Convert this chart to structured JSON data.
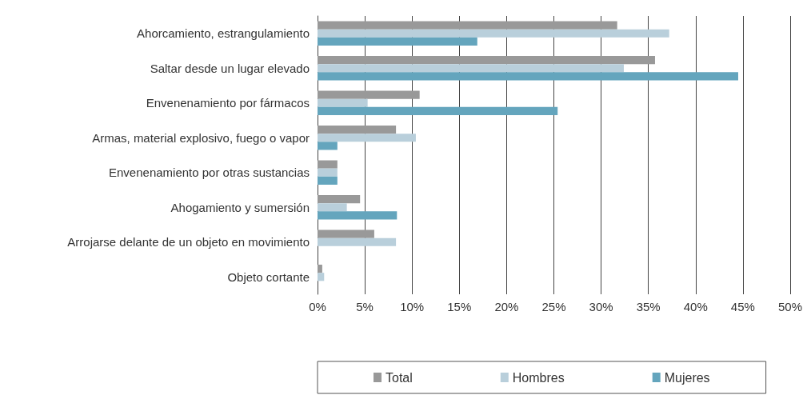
{
  "chart_data": {
    "type": "bar",
    "orientation": "horizontal",
    "categories": [
      "Ahorcamiento, estrangulamiento",
      "Saltar desde un lugar elevado",
      "Envenenamiento por fármacos",
      "Armas, material explosivo, fuego o vapor",
      "Envenenamiento por otras sustancias",
      "Ahogamiento y sumersión",
      "Arrojarse delante de un objeto en movimiento",
      "Objeto cortante"
    ],
    "series": [
      {
        "name": "Total",
        "color": "#999999",
        "values": [
          31.7,
          35.7,
          10.8,
          8.3,
          2.1,
          4.5,
          6.0,
          0.5
        ]
      },
      {
        "name": "Hombres",
        "color": "#b9cfdb",
        "values": [
          37.2,
          32.4,
          5.3,
          10.4,
          2.1,
          3.1,
          8.3,
          0.7
        ]
      },
      {
        "name": "Mujeres",
        "color": "#64a5bd",
        "values": [
          16.9,
          44.5,
          25.4,
          2.1,
          2.1,
          8.4,
          null,
          null
        ]
      }
    ],
    "xlim": [
      0,
      50
    ],
    "xticks": [
      {
        "value": 0,
        "label": "0%"
      },
      {
        "value": 5,
        "label": "5%"
      },
      {
        "value": 10,
        "label": "10%"
      },
      {
        "value": 15,
        "label": "15%"
      },
      {
        "value": 20,
        "label": "20%"
      },
      {
        "value": 25,
        "label": "25%"
      },
      {
        "value": 30,
        "label": "30%"
      },
      {
        "value": 35,
        "label": "35%"
      },
      {
        "value": 40,
        "label": "40%"
      },
      {
        "value": 45,
        "label": "45%"
      },
      {
        "value": 50,
        "label": "50%"
      }
    ],
    "grid": "x",
    "legend": "bottom"
  }
}
